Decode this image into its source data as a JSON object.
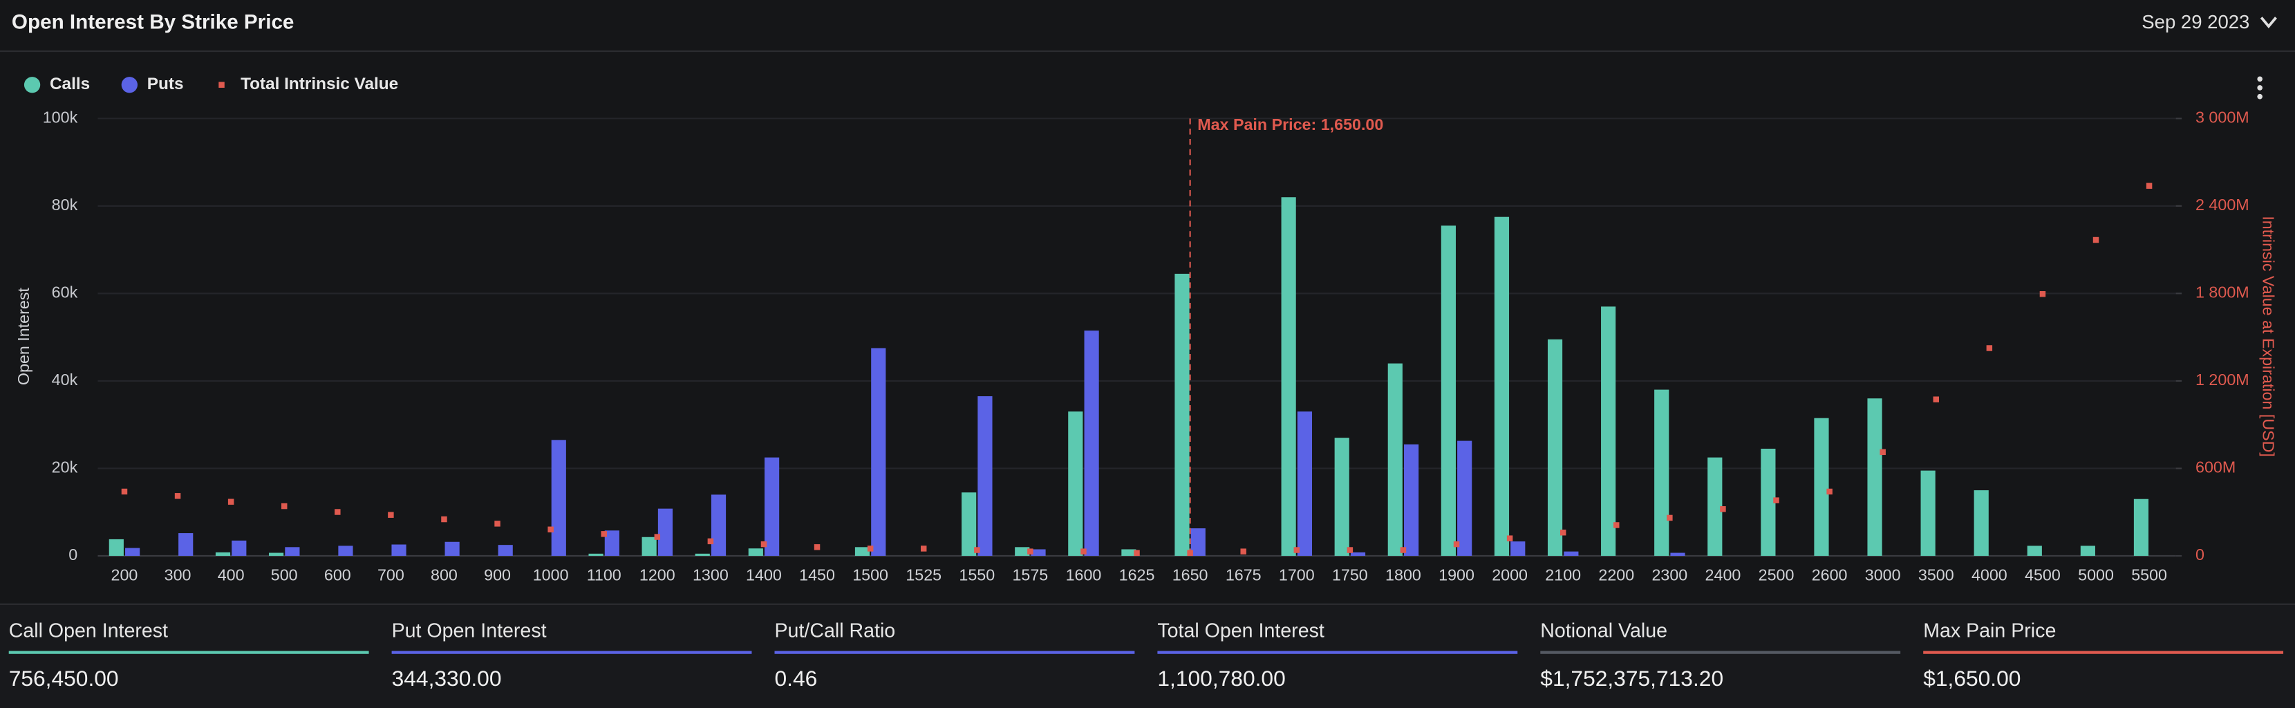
{
  "header": {
    "title": "Open Interest By Strike Price",
    "date": "Sep 29 2023"
  },
  "chart_data": {
    "type": "bar",
    "categories": [
      200,
      300,
      400,
      500,
      600,
      700,
      800,
      900,
      1000,
      1100,
      1200,
      1300,
      1400,
      1450,
      1500,
      1525,
      1550,
      1575,
      1600,
      1625,
      1650,
      1675,
      1700,
      1750,
      1800,
      1900,
      2000,
      2100,
      2200,
      2300,
      2400,
      2500,
      2600,
      3000,
      3500,
      4000,
      4500,
      5000,
      5500
    ],
    "series": [
      {
        "name": "Calls",
        "type": "bar",
        "color": "#5cc9b0",
        "values": [
          3800,
          0,
          800,
          700,
          0,
          0,
          0,
          0,
          0,
          500,
          4300,
          500,
          1700,
          0,
          2000,
          0,
          14500,
          2000,
          33000,
          1500,
          64500,
          0,
          82000,
          27000,
          44000,
          75500,
          77500,
          49500,
          57000,
          38000,
          22500,
          24500,
          31500,
          36000,
          19500,
          15000,
          2300,
          2300,
          13000
        ]
      },
      {
        "name": "Puts",
        "type": "bar",
        "color": "#5b63e6",
        "values": [
          1800,
          5200,
          3500,
          2000,
          2300,
          2600,
          3200,
          2500,
          26500,
          5800,
          10800,
          14000,
          22500,
          0,
          47500,
          0,
          36500,
          1500,
          51500,
          0,
          6300,
          0,
          33000,
          800,
          25500,
          26300,
          3300,
          1000,
          0,
          700,
          0,
          0,
          0,
          0,
          0,
          0,
          0,
          0,
          0
        ]
      },
      {
        "name": "Total Intrinsic Value",
        "type": "scatter",
        "axis": "y2",
        "color": "#e05a4f",
        "values": [
          441000000,
          411000000,
          371000000,
          341000000,
          301000000,
          281000000,
          251000000,
          221000000,
          181000000,
          150000000,
          130000000,
          100000000,
          80000000,
          60000000,
          50000000,
          50000000,
          40000000,
          30000000,
          30000000,
          20000000,
          20000000,
          30000000,
          40000000,
          40000000,
          40000000,
          80000000,
          120000000,
          160000000,
          211000000,
          261000000,
          321000000,
          381000000,
          441000000,
          712000000,
          1073000000,
          1425000000,
          1796000000,
          2167000000,
          2538000000
        ]
      }
    ],
    "ylim": [
      0,
      100000
    ],
    "yticks": [
      0,
      {
        "value": 20000,
        "label": "20k"
      },
      {
        "value": 40000,
        "label": "40k"
      },
      {
        "value": 60000,
        "label": "60k"
      },
      {
        "value": 80000,
        "label": "80k"
      },
      {
        "value": 100000,
        "label": "100k"
      }
    ],
    "y2lim": [
      0,
      3000000000
    ],
    "y2ticks": [
      0,
      {
        "value": 600000000,
        "label": "600M"
      },
      {
        "value": 1200000000,
        "label": "1 200M"
      },
      {
        "value": 1800000000,
        "label": "1 800M"
      },
      {
        "value": 2400000000,
        "label": "2 400M"
      },
      {
        "value": 3000000000,
        "label": "3 000M"
      }
    ],
    "ylabel": "Open Interest",
    "y2label": "Intrinsic Value at Expiration [USD]",
    "grid": true,
    "legend": "top-left",
    "annotations": [
      {
        "text": "Max Pain Price: 1,650.00",
        "x": 1650
      }
    ]
  },
  "stats": [
    {
      "label": "Call Open Interest",
      "value": "756,450.00",
      "color": "#5cc9b0"
    },
    {
      "label": "Put Open Interest",
      "value": "344,330.00",
      "color": "#5b63e6"
    },
    {
      "label": "Put/Call Ratio",
      "value": "0.46",
      "color": "#5b63e6"
    },
    {
      "label": "Total Open Interest",
      "value": "1,100,780.00",
      "color": "#5b63e6"
    },
    {
      "label": "Notional Value",
      "value": "$1,752,375,713.20",
      "color": "#555a63"
    },
    {
      "label": "Max Pain Price",
      "value": "$1,650.00",
      "color": "#e05a4f"
    }
  ]
}
